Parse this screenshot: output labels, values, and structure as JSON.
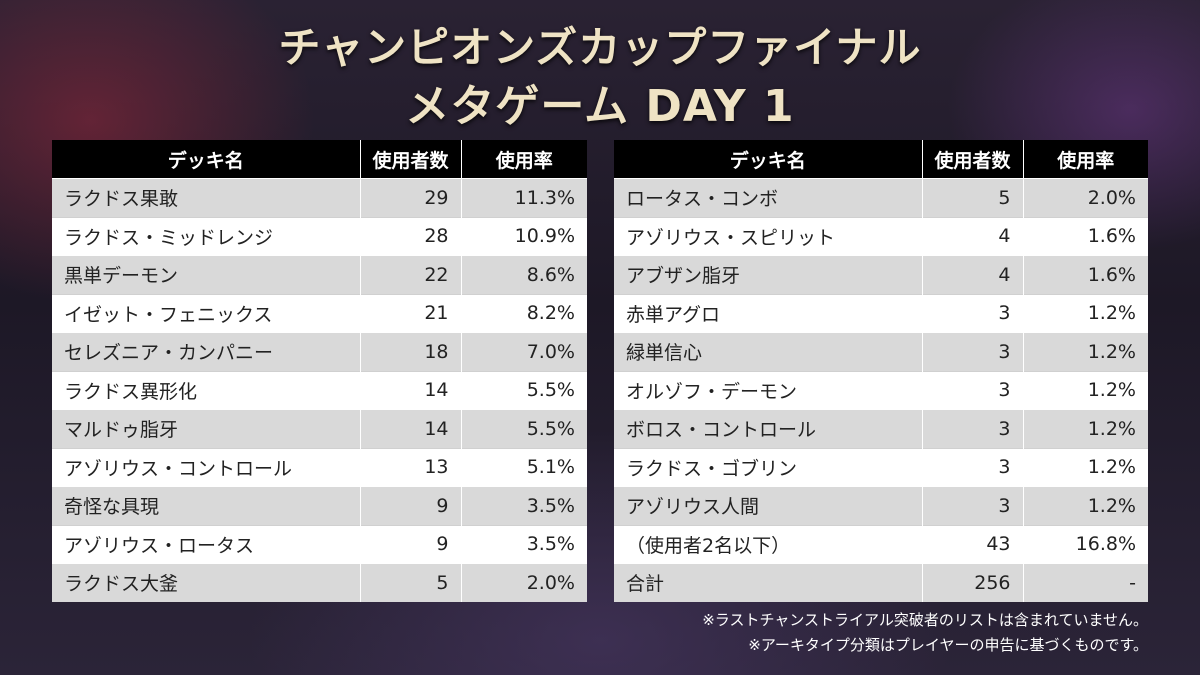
{
  "title_line1": "チャンピオンズカップファイナル",
  "title_line2": "メタゲーム DAY 1",
  "headers": [
    "デッキ名",
    "使用者数",
    "使用率"
  ],
  "chart_data": {
    "type": "table",
    "columns": [
      "デッキ名",
      "使用者数",
      "使用率"
    ],
    "left_rows": [
      [
        "ラクドス果敢",
        "29",
        "11.3%"
      ],
      [
        "ラクドス・ミッドレンジ",
        "28",
        "10.9%"
      ],
      [
        "黒単デーモン",
        "22",
        "8.6%"
      ],
      [
        "イゼット・フェニックス",
        "21",
        "8.2%"
      ],
      [
        "セレズニア・カンパニー",
        "18",
        "7.0%"
      ],
      [
        "ラクドス異形化",
        "14",
        "5.5%"
      ],
      [
        "マルドゥ脂牙",
        "14",
        "5.5%"
      ],
      [
        "アゾリウス・コントロール",
        "13",
        "5.1%"
      ],
      [
        "奇怪な具現",
        "9",
        "3.5%"
      ],
      [
        "アゾリウス・ロータス",
        "9",
        "3.5%"
      ],
      [
        "ラクドス大釜",
        "5",
        "2.0%"
      ]
    ],
    "right_rows": [
      [
        "ロータス・コンボ",
        "5",
        "2.0%"
      ],
      [
        "アゾリウス・スピリット",
        "4",
        "1.6%"
      ],
      [
        "アブザン脂牙",
        "4",
        "1.6%"
      ],
      [
        "赤単アグロ",
        "3",
        "1.2%"
      ],
      [
        "緑単信心",
        "3",
        "1.2%"
      ],
      [
        "オルゾフ・デーモン",
        "3",
        "1.2%"
      ],
      [
        "ボロス・コントロール",
        "3",
        "1.2%"
      ],
      [
        "ラクドス・ゴブリン",
        "3",
        "1.2%"
      ],
      [
        "アゾリウス人間",
        "3",
        "1.2%"
      ],
      [
        "（使用者2名以下）",
        "43",
        "16.8%"
      ],
      [
        "合計",
        "256",
        "-"
      ]
    ]
  },
  "notes": [
    "※ラストチャンストライアル突破者のリストは含まれていません。",
    "※アーキタイプ分類はプレイヤーの申告に基づくものです。"
  ],
  "colors": {
    "header_bg": "#000000",
    "row_odd": "#d9d9d9",
    "row_even": "#ffffff",
    "title": "#efe3c4"
  }
}
